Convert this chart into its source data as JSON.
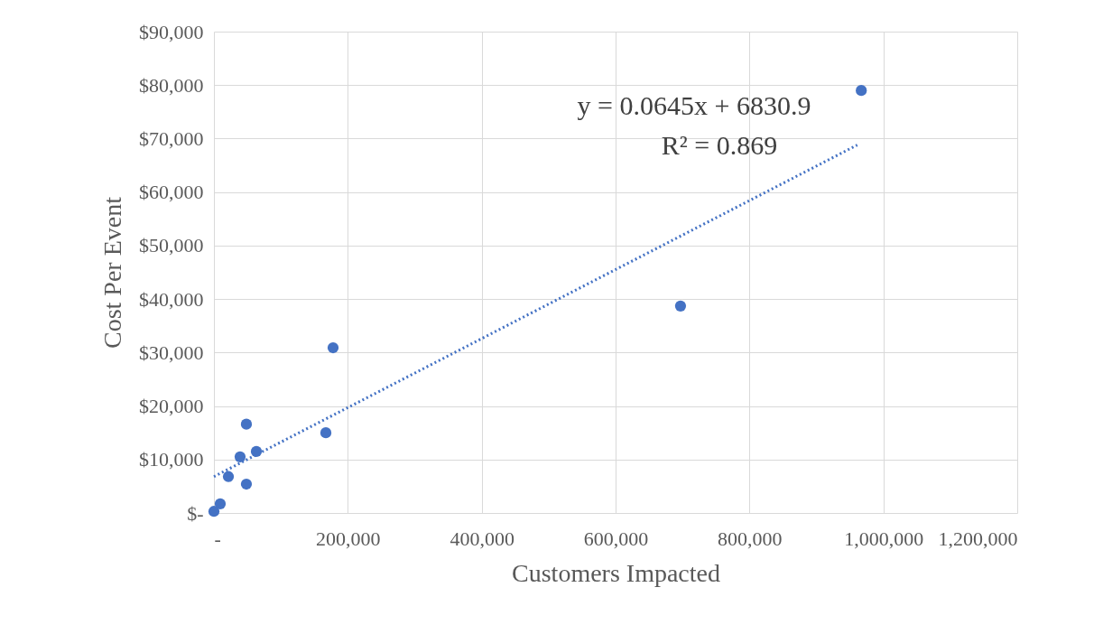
{
  "chart_data": {
    "type": "scatter",
    "xlabel": "Customers Impacted",
    "ylabel": "Cost Per Event",
    "series": [
      {
        "color": "#4472c4",
        "marker": "circle",
        "x": [
          0,
          9400,
          21600,
          39100,
          48500,
          48500,
          63400,
          167200,
          178000,
          697000,
          967000
        ],
        "values": [
          300,
          1700,
          6800,
          10500,
          5400,
          16600,
          11500,
          15000,
          30900,
          38700,
          79000
        ]
      },
      {
        "type": "line",
        "color": "#4472c4",
        "line_style": "dotted",
        "x": [
          0,
          961000
        ],
        "values": [
          6800,
          68800
        ]
      }
    ],
    "xlim": [
      0,
      1200000
    ],
    "ylim": [
      0,
      90000
    ],
    "xticks": [
      {
        "value": 0,
        "label": "-"
      },
      {
        "value": 200000,
        "label": "200,000"
      },
      {
        "value": 400000,
        "label": "400,000"
      },
      {
        "value": 600000,
        "label": "600,000"
      },
      {
        "value": 800000,
        "label": "800,000"
      },
      {
        "value": 1000000,
        "label": "1,000,000"
      },
      {
        "value": 1200000,
        "label": "1,200,000"
      }
    ],
    "yticks": [
      {
        "value": 0,
        "label": "$-"
      },
      {
        "value": 10000,
        "label": "$10,000"
      },
      {
        "value": 20000,
        "label": "$20,000"
      },
      {
        "value": 30000,
        "label": "$30,000"
      },
      {
        "value": 40000,
        "label": "$40,000"
      },
      {
        "value": 50000,
        "label": "$50,000"
      },
      {
        "value": 60000,
        "label": "$60,000"
      },
      {
        "value": 70000,
        "label": "$70,000"
      },
      {
        "value": 80000,
        "label": "$80,000"
      },
      {
        "value": 90000,
        "label": "$90,000"
      }
    ],
    "grid": true,
    "annotations": [
      "y = 0.0645x + 6830.9",
      "R² = 0.869"
    ]
  }
}
